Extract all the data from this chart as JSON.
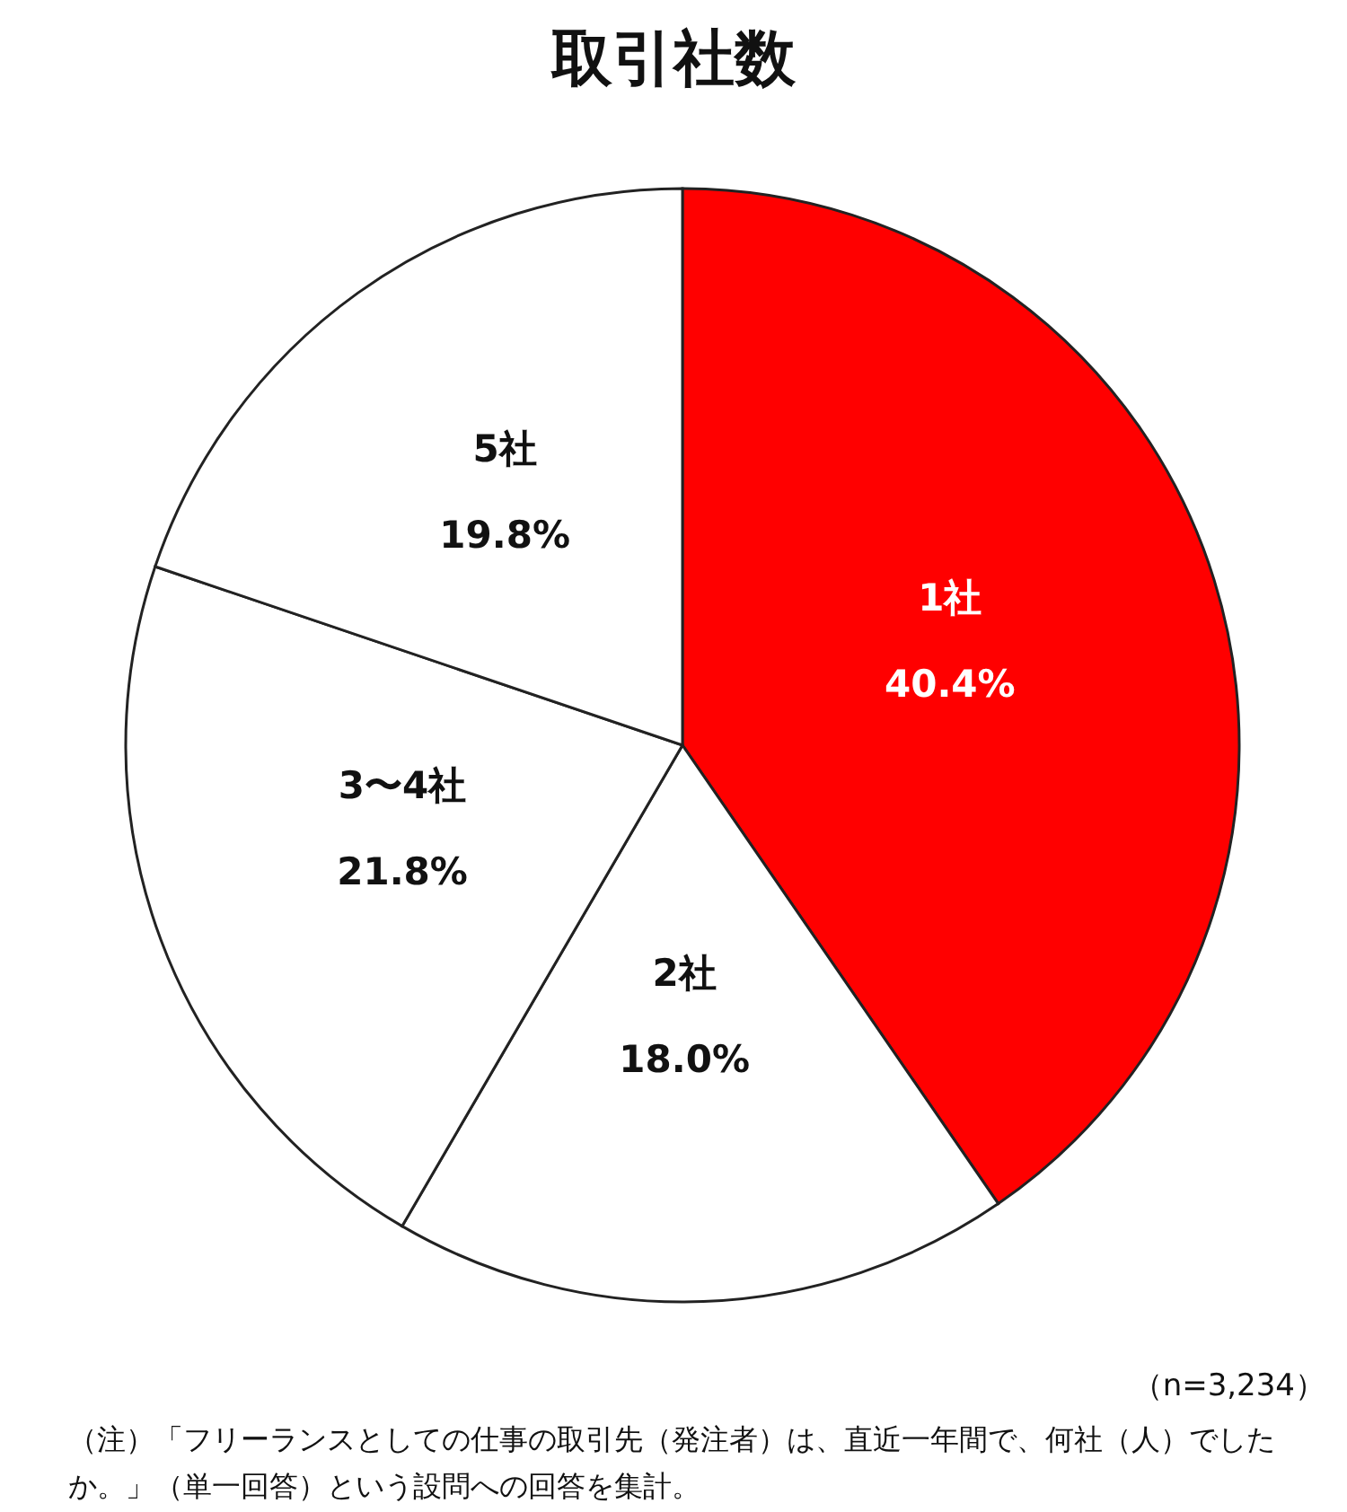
{
  "chart_data": {
    "type": "pie",
    "title": "取引社数",
    "categories": [
      "1社",
      "2社",
      "3〜4社",
      "5社"
    ],
    "values": [
      40.4,
      18.0,
      21.8,
      19.8
    ],
    "value_labels": [
      "40.4%",
      "18.0%",
      "21.8%",
      "19.8%"
    ],
    "colors": [
      "#ff0000",
      "#ffffff",
      "#ffffff",
      "#ffffff"
    ],
    "annotations": [
      "（n=3,234）",
      "（注）「フリーランスとしての仕事の取引先（発注者）は、直近一年間で、何社（人）でしたか。」（単一回答）という設問への回答を集計。"
    ]
  }
}
